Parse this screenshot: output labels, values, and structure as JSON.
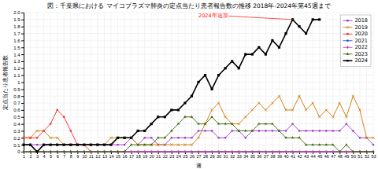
{
  "chart_data": {
    "type": "line",
    "title": "図：千葉県における マイコプラズマ肺炎の定点当たり患者報告数の推移 2018年-2024年第45週まで",
    "xlabel": "週",
    "ylabel": "定点当たり患者報告数",
    "x": [
      1,
      2,
      3,
      4,
      5,
      6,
      7,
      8,
      9,
      10,
      11,
      12,
      13,
      14,
      15,
      16,
      17,
      18,
      19,
      20,
      21,
      22,
      23,
      24,
      25,
      26,
      27,
      28,
      29,
      30,
      31,
      32,
      33,
      34,
      35,
      36,
      37,
      38,
      39,
      40,
      41,
      42,
      43,
      44,
      45,
      46,
      47,
      48,
      49,
      50,
      51,
      52,
      53
    ],
    "xlim": [
      1,
      53
    ],
    "xticks": [
      1,
      2,
      3,
      4,
      5,
      6,
      7,
      8,
      9,
      10,
      11,
      12,
      13,
      14,
      15,
      16,
      17,
      18,
      19,
      20,
      21,
      22,
      23,
      24,
      25,
      26,
      27,
      28,
      29,
      30,
      31,
      32,
      33,
      34,
      35,
      36,
      37,
      38,
      39,
      40,
      41,
      42,
      43,
      44,
      45,
      46,
      47,
      48,
      49,
      50,
      51,
      52,
      53
    ],
    "ylim": [
      0,
      2.0
    ],
    "yticks": [
      0,
      0.1,
      0.2,
      0.3,
      0.4,
      0.5,
      0.6,
      0.7,
      0.8,
      0.9,
      1,
      1.1,
      1.2,
      1.3,
      1.4,
      1.5,
      1.6,
      1.7,
      1.8,
      1.9,
      {
        "value": 2.0,
        "label": "2.0"
      }
    ],
    "grid": true,
    "legend": "upper right",
    "annotations": [
      {
        "text": "2024年追加",
        "x": 41,
        "y": 1.9,
        "text_x": 27,
        "text_y": 1.95,
        "color": "#FF2222"
      }
    ],
    "series": [
      {
        "name": "2018",
        "color": "#9933CC",
        "marker": "square",
        "values": [
          0.1,
          0.1,
          0.1,
          0.1,
          0.1,
          0.1,
          0.1,
          0.1,
          0.1,
          0.1,
          0.1,
          0.1,
          0.1,
          0.1,
          0.1,
          0.1,
          0.2,
          0.1,
          0.2,
          0.2,
          0.1,
          0.1,
          0.2,
          0.2,
          0.2,
          0.2,
          0.3,
          0.3,
          0.3,
          0.2,
          0.2,
          0.3,
          0.3,
          0.2,
          0.3,
          0.3,
          0.3,
          0.3,
          0.3,
          0.3,
          0.4,
          0.3,
          0.3,
          0.3,
          0.3,
          0.3,
          0.3,
          0.3,
          0.4,
          0.3,
          0.2,
          0.2,
          0.1
        ]
      },
      {
        "name": "2019",
        "color": "#CC7700",
        "marker": "x",
        "values": [
          0.2,
          0.2,
          0.3,
          0.3,
          0.2,
          0.2,
          0.1,
          0.1,
          0.1,
          0.1,
          0.1,
          0.1,
          0.1,
          0.2,
          0.2,
          0.2,
          0.2,
          0.1,
          0.1,
          0.1,
          0.1,
          0.1,
          0.1,
          0.1,
          0.1,
          0.1,
          0.2,
          0.4,
          0.6,
          0.7,
          0.5,
          0.4,
          0.4,
          0.5,
          0.6,
          0.7,
          0.6,
          0.7,
          0.8,
          0.6,
          0.6,
          0.8,
          0.6,
          0.7,
          0.5,
          0.6,
          0.5,
          0.7,
          0.5,
          0.8,
          0.6,
          0.2,
          0.2
        ]
      },
      {
        "name": "2020",
        "color": "#FF2222",
        "marker": "square",
        "values": [
          0.2,
          0.2,
          0.2,
          0.3,
          0.4,
          0.6,
          0.5,
          0.3,
          0.1,
          0.1,
          0.0,
          0.0,
          0.0,
          0.0,
          0.0,
          0.0,
          0.0,
          0.0,
          0.0,
          0.0,
          0.0,
          0.0,
          0.0,
          0.0,
          0.0,
          0.0,
          0.0,
          0.0,
          0.0,
          0.0,
          0.0,
          0.0,
          0.0,
          0.0,
          0.0,
          0.0,
          0.0,
          0.0,
          0.0,
          0.0,
          0.0,
          0.0,
          0.0,
          0.0,
          0.0,
          0.0,
          0.0,
          0.0,
          0.0,
          0.0,
          0.0,
          0.0,
          0.0
        ]
      },
      {
        "name": "2021",
        "color": "#3355CC",
        "marker": "square",
        "values": [
          0.0,
          0.0,
          0.0,
          0.0,
          0.0,
          0.0,
          0.0,
          0.0,
          0.0,
          0.0,
          0.0,
          0.0,
          0.0,
          0.0,
          0.0,
          0.0,
          0.0,
          0.0,
          0.0,
          0.0,
          0.0,
          0.0,
          0.0,
          0.0,
          0.0,
          0.0,
          0.0,
          0.0,
          0.0,
          0.0,
          0.0,
          0.0,
          0.0,
          0.0,
          0.0,
          0.0,
          0.0,
          0.0,
          0.0,
          0.0,
          0.0,
          0.0,
          0.0,
          0.0,
          0.0,
          0.0,
          0.0,
          0.0,
          0.0,
          0.0,
          0.0,
          0.0,
          0.0
        ]
      },
      {
        "name": "2022",
        "color": "#CC44AA",
        "marker": "diamond",
        "values": [
          0.0,
          0.0,
          0.0,
          0.0,
          0.0,
          0.0,
          0.0,
          0.0,
          0.0,
          0.0,
          0.0,
          0.0,
          0.0,
          0.0,
          0.0,
          0.0,
          0.0,
          0.0,
          0.0,
          0.0,
          0.0,
          0.0,
          0.0,
          0.0,
          0.0,
          0.0,
          0.0,
          0.0,
          0.0,
          0.0,
          0.0,
          0.0,
          0.0,
          0.0,
          0.0,
          0.0,
          0.0,
          0.0,
          0.0,
          0.0,
          0.0,
          0.0,
          0.0,
          0.0,
          0.0,
          0.0,
          0.0,
          0.0,
          0.0,
          0.0,
          0.0,
          0.0,
          0.0
        ]
      },
      {
        "name": "2023",
        "color": "#336600",
        "marker": "triangle",
        "values": [
          0.0,
          0.0,
          0.0,
          0.0,
          0.0,
          0.0,
          0.0,
          0.0,
          0.0,
          0.0,
          0.0,
          0.0,
          0.0,
          0.0,
          0.0,
          0.0,
          0.1,
          0.1,
          0.1,
          0.1,
          0.2,
          0.2,
          0.3,
          0.4,
          0.5,
          0.5,
          0.4,
          0.4,
          0.5,
          0.4,
          0.4,
          0.4,
          0.3,
          0.3,
          0.3,
          0.4,
          0.4,
          0.4,
          0.3,
          0.2,
          0.2,
          0.2,
          0.1,
          0.1,
          0.1,
          0.1,
          0.1,
          0.0,
          0.1,
          0.0,
          0.0,
          0.0,
          0.0
        ]
      },
      {
        "name": "2024",
        "color": "#000000",
        "marker": "square",
        "values": [
          0.1,
          0.1,
          0.0,
          0.1,
          0.1,
          0.1,
          0.1,
          0.1,
          0.1,
          0.1,
          0.1,
          0.1,
          0.1,
          0.1,
          0.2,
          0.2,
          0.2,
          0.3,
          0.3,
          0.4,
          0.5,
          0.5,
          0.6,
          0.6,
          0.7,
          0.8,
          1.0,
          1.1,
          0.9,
          1.1,
          1.2,
          1.3,
          1.2,
          1.4,
          1.4,
          1.5,
          1.4,
          1.6,
          1.5,
          1.7,
          1.9,
          1.8,
          1.7,
          1.9,
          1.9,
          null,
          null,
          null,
          null,
          null,
          null,
          null,
          null
        ]
      }
    ]
  }
}
